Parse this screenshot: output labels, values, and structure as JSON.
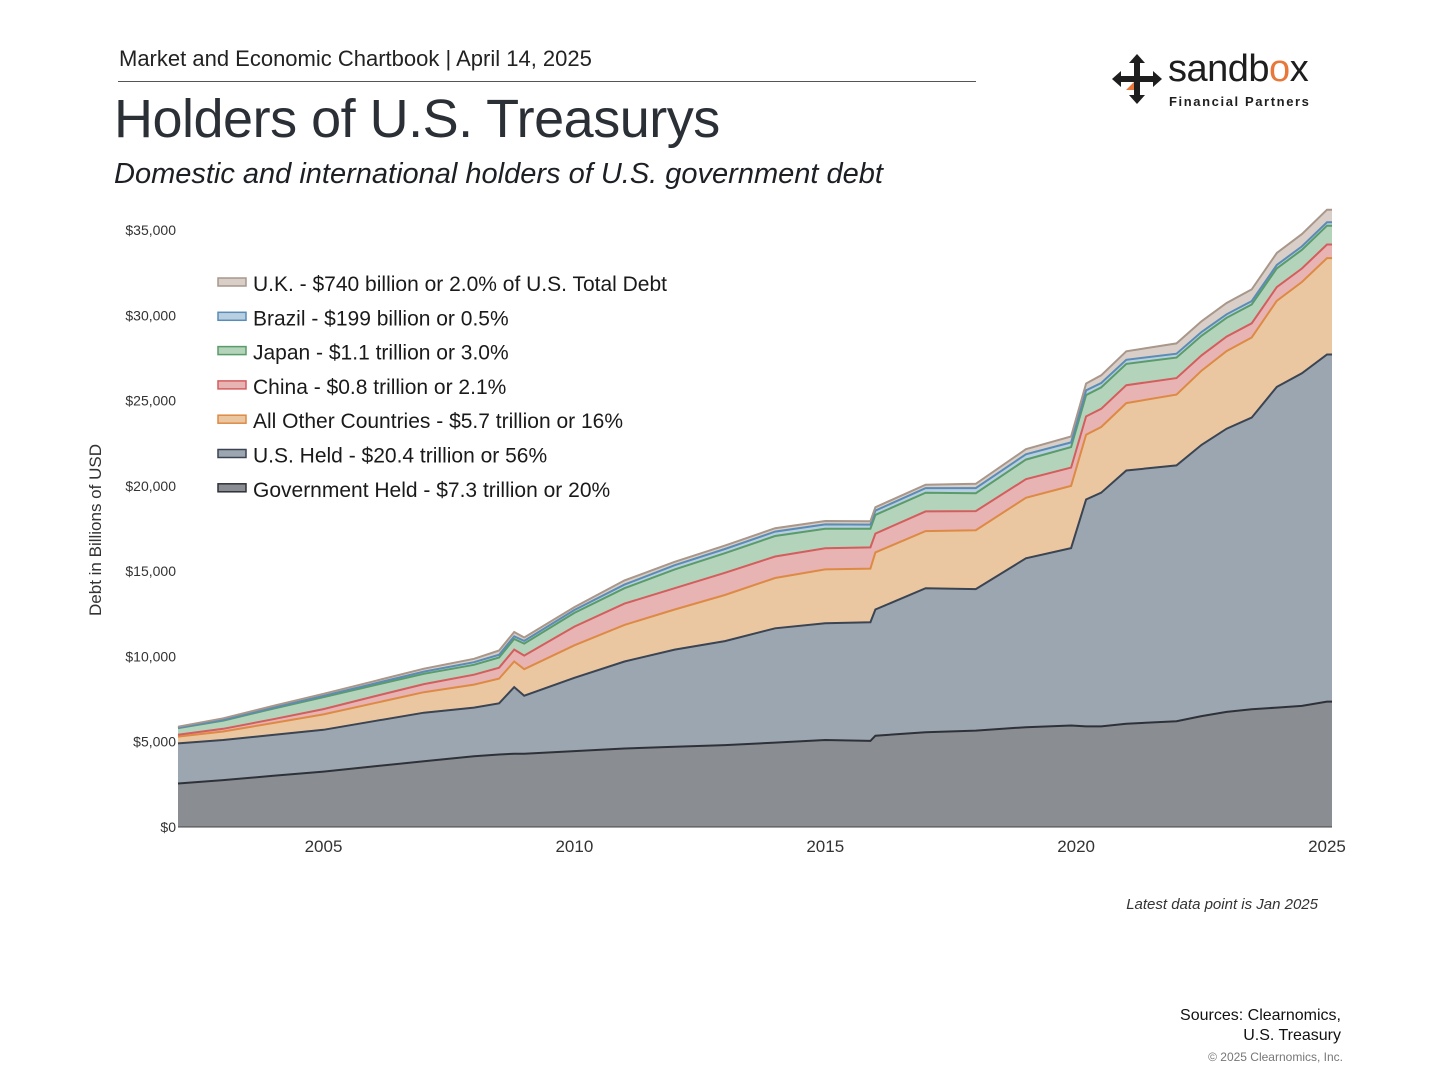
{
  "header": {
    "kicker": "Market and Economic Chartbook | April 14, 2025",
    "title": "Holders of U.S. Treasurys",
    "subtitle": "Domestic and international holders of U.S. government debt"
  },
  "logo": {
    "word_start": "sandb",
    "word_o": "o",
    "word_end": "x",
    "sub": "Financial Partners"
  },
  "footer": {
    "note": "Latest data point is Jan 2025",
    "sources_line1": "Sources: Clearnomics,",
    "sources_line2": "U.S. Treasury",
    "copyright": "© 2025 Clearnomics, Inc."
  },
  "chart_data": {
    "type": "area",
    "stacked": true,
    "ylabel": "Debt in Billions of USD",
    "xlim": [
      2002.1,
      2025.1
    ],
    "ylim": [
      0,
      35000
    ],
    "y_ticks": [
      0,
      5000,
      10000,
      15000,
      20000,
      25000,
      30000,
      35000
    ],
    "y_tick_labels": [
      "$0",
      "$5,000",
      "$10,000",
      "$15,000",
      "$20,000",
      "$25,000",
      "$30,000",
      "$35,000"
    ],
    "x_ticks": [
      2005,
      2010,
      2015,
      2020,
      2025
    ],
    "x_tick_labels": [
      "2005",
      "2010",
      "2015",
      "2020",
      "2025"
    ],
    "legend_position": "top-left",
    "x": [
      2002.1,
      2003,
      2004,
      2005,
      2006,
      2007,
      2008,
      2008.5,
      2008.8,
      2009,
      2010,
      2011,
      2012,
      2013,
      2014,
      2015,
      2015.9,
      2016,
      2017,
      2018,
      2019,
      2019.9,
      2020.2,
      2020.5,
      2021,
      2022,
      2022.5,
      2023,
      2023.5,
      2024,
      2024.5,
      2025,
      2025.1
    ],
    "series": [
      {
        "name": "Government Held - $7.3 trillion or 20%",
        "color": "#8a8d92",
        "line": "#2e3238",
        "values": [
          2550,
          2750,
          3000,
          3250,
          3550,
          3850,
          4150,
          4250,
          4300,
          4300,
          4450,
          4600,
          4700,
          4800,
          4950,
          5100,
          5050,
          5350,
          5550,
          5650,
          5850,
          5950,
          5900,
          5900,
          6050,
          6200,
          6500,
          6750,
          6900,
          7000,
          7100,
          7350,
          7350
        ]
      },
      {
        "name": "U.S. Held - $20.4 trillion or 56%",
        "color": "#9ca6b0",
        "line": "#3b4452",
        "values": [
          2350,
          2350,
          2400,
          2450,
          2650,
          2850,
          2850,
          3000,
          3900,
          3400,
          4300,
          5100,
          5700,
          6100,
          6700,
          6850,
          6950,
          7400,
          8450,
          8300,
          9900,
          10400,
          13300,
          13700,
          14850,
          15000,
          15900,
          16600,
          17100,
          18800,
          19500,
          20350,
          20350
        ]
      },
      {
        "name": "All Other Countries - $5.7 trillion or 16%",
        "color": "#ebc7a1",
        "line": "#dd8a45",
        "values": [
          400,
          500,
          700,
          900,
          1050,
          1200,
          1350,
          1450,
          1500,
          1550,
          1900,
          2150,
          2350,
          2700,
          2950,
          3150,
          3150,
          3350,
          3350,
          3450,
          3550,
          3650,
          3800,
          3850,
          3950,
          4150,
          4350,
          4550,
          4700,
          5050,
          5350,
          5650,
          5650
        ]
      },
      {
        "name": "China - $0.8 trillion or 2.1%",
        "color": "#e8b3b3",
        "line": "#d45d5d",
        "values": [
          110,
          160,
          220,
          310,
          400,
          480,
          580,
          640,
          700,
          800,
          1100,
          1250,
          1250,
          1300,
          1260,
          1240,
          1240,
          1100,
          1150,
          1120,
          1090,
          1070,
          1070,
          1070,
          1050,
          970,
          900,
          850,
          830,
          800,
          790,
          800,
          800
        ]
      },
      {
        "name": "Japan - $1.1 trillion or 3.0%",
        "color": "#b4d3bb",
        "line": "#5a9b6a",
        "values": [
          380,
          480,
          620,
          700,
          650,
          600,
          580,
          600,
          620,
          700,
          800,
          900,
          1100,
          1150,
          1200,
          1150,
          1100,
          1100,
          1100,
          1050,
          1150,
          1200,
          1250,
          1250,
          1250,
          1200,
          1150,
          1100,
          1100,
          1100,
          1100,
          1100,
          1100
        ]
      },
      {
        "name": "Brazil - $199 billion or 0.5%",
        "color": "#b7cfe0",
        "line": "#5a8cb5",
        "values": [
          20,
          40,
          60,
          80,
          100,
          130,
          150,
          160,
          160,
          160,
          170,
          210,
          250,
          250,
          260,
          250,
          240,
          250,
          270,
          300,
          310,
          280,
          280,
          260,
          240,
          230,
          220,
          210,
          200,
          200,
          200,
          199,
          199
        ]
      },
      {
        "name": "U.K. - $740 billion or 2.0% of U.S. Total Debt",
        "color": "#d9cfc8",
        "line": "#a8978a",
        "values": [
          70,
          90,
          100,
          120,
          140,
          170,
          200,
          250,
          250,
          200,
          170,
          250,
          200,
          200,
          200,
          200,
          200,
          200,
          200,
          250,
          300,
          350,
          400,
          450,
          500,
          600,
          630,
          660,
          690,
          700,
          720,
          740,
          740
        ]
      }
    ]
  }
}
